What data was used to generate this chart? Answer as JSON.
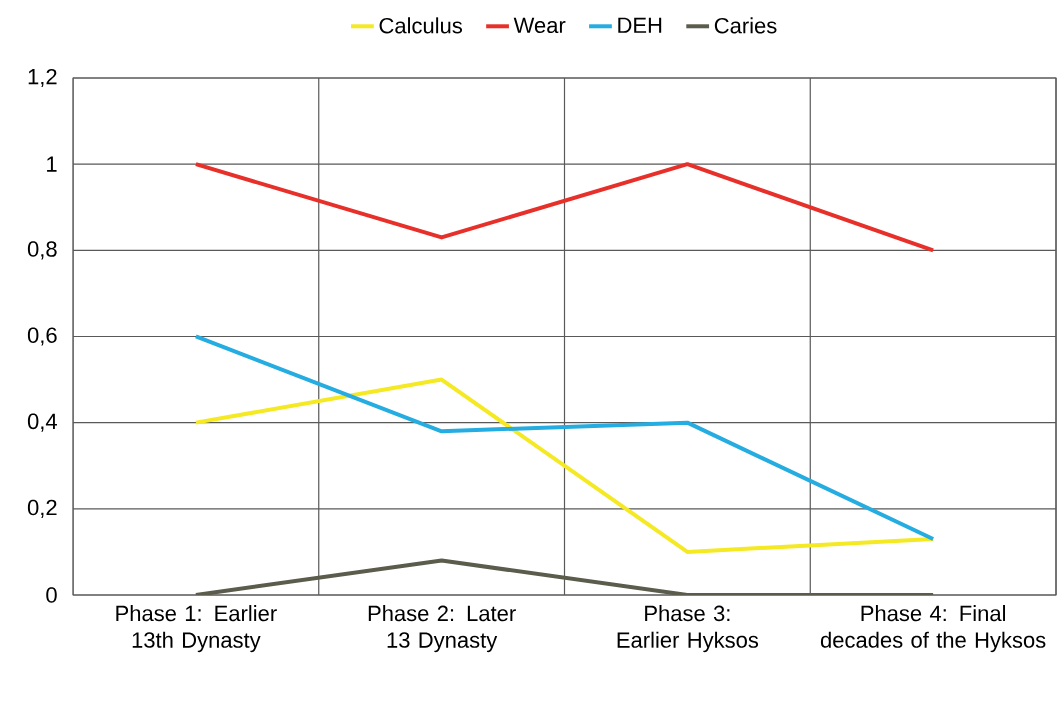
{
  "chart_data": {
    "type": "line",
    "categories": [
      "Phase 1: Earlier 13th Dynasty",
      "Phase 2: Later 13 Dynasty",
      "Phase 3: Earlier Hyksos",
      "Phase 4: Final decades of the Hyksos"
    ],
    "series": [
      {
        "name": "Calculus",
        "color": "#f4e922",
        "values": [
          0.4,
          0.5,
          0.1,
          0.13
        ]
      },
      {
        "name": "Wear",
        "color": "#e8302a",
        "values": [
          1,
          0.83,
          1,
          0.8
        ]
      },
      {
        "name": "DEH",
        "color": "#25ace0",
        "values": [
          0.6,
          0.38,
          0.4,
          0.13
        ]
      },
      {
        "name": "Caries",
        "color": "#5b5c4c",
        "values": [
          0,
          0.08,
          0,
          0
        ]
      }
    ],
    "ylim": [
      0,
      1.2
    ],
    "yticks": [
      0,
      {
        "value": 0.2,
        "label": "0,2"
      },
      {
        "value": 0.4,
        "label": "0,4"
      },
      {
        "value": 0.6,
        "label": "0,6"
      },
      {
        "value": 0.8,
        "label": "0,8"
      },
      1,
      {
        "value": 1.2,
        "label": "1,2"
      }
    ],
    "grid": true,
    "legend": "top"
  }
}
